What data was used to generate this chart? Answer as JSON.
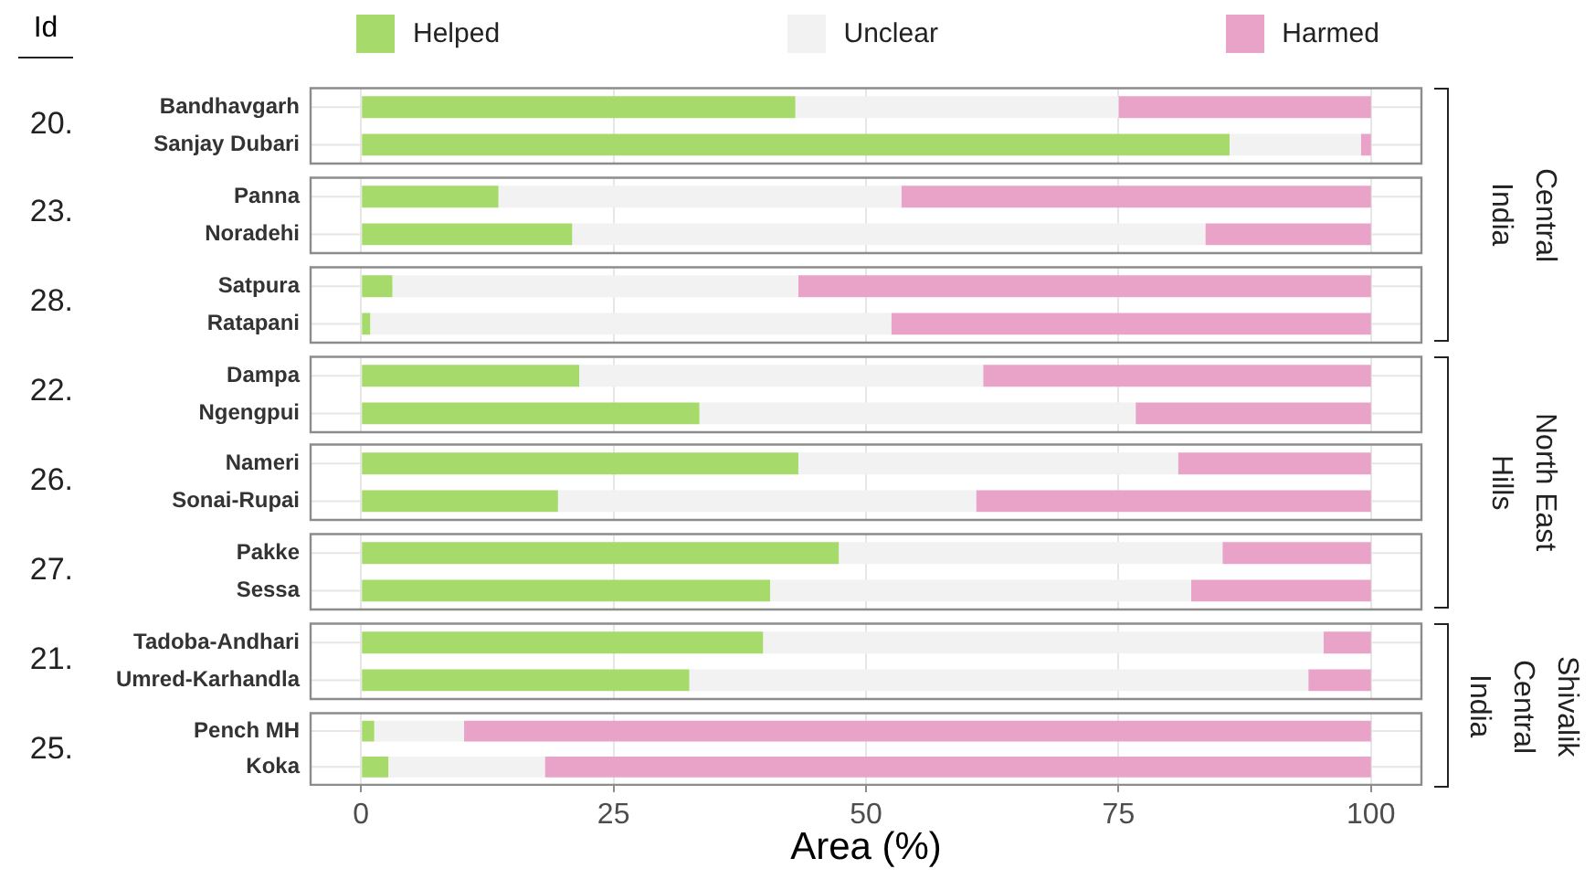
{
  "chart_data": [
    {
      "type": "bar",
      "orientation": "horizontal",
      "stacked": true,
      "title": "20.",
      "y2label": "Central India",
      "annotations": [
        "Id"
      ],
      "categories": [
        "Bandhavgarh",
        "Sanjay Dubari"
      ],
      "series": [
        {
          "name": "Helped",
          "color": "#a6db6b",
          "values": [
            43,
            86
          ]
        },
        {
          "name": "Unclear",
          "color": "#f2f2f2",
          "values": [
            32,
            13
          ]
        },
        {
          "name": "Harmed",
          "color": "#e9a3c9",
          "values": [
            25,
            1
          ]
        }
      ],
      "xlim": [
        -5,
        105
      ],
      "xticks": [
        0,
        25,
        50,
        75,
        100
      ],
      "grid": true,
      "legend": "top",
      "tick_labels": "y"
    },
    {
      "type": "bar",
      "orientation": "horizontal",
      "stacked": true,
      "title": "23.",
      "categories": [
        "Panna",
        "Noradehi"
      ],
      "series": [
        {
          "color": "#a6db6b",
          "values": [
            13.6,
            20.9
          ]
        },
        {
          "color": "#f2f2f2",
          "values": [
            39.9,
            62.7
          ]
        },
        {
          "color": "#e9a3c9",
          "values": [
            46.5,
            16.4
          ]
        }
      ],
      "xlim": [
        -5,
        105
      ],
      "xticks": [
        0,
        25,
        50,
        75,
        100
      ],
      "grid": true,
      "tick_labels": "y"
    },
    {
      "type": "bar",
      "orientation": "horizontal",
      "stacked": true,
      "title": "28.",
      "categories": [
        "Satpura",
        "Ratapani"
      ],
      "series": [
        {
          "color": "#a6db6b",
          "values": [
            3.1,
            0.9
          ]
        },
        {
          "color": "#f2f2f2",
          "values": [
            40.2,
            51.6
          ]
        },
        {
          "color": "#e9a3c9",
          "values": [
            56.7,
            47.5
          ]
        }
      ],
      "xlim": [
        -5,
        105
      ],
      "xticks": [
        0,
        25,
        50,
        75,
        100
      ],
      "grid": true,
      "tick_labels": "y"
    },
    {
      "type": "bar",
      "orientation": "horizontal",
      "stacked": true,
      "title": "22.",
      "y2label": "North East Hills",
      "categories": [
        "Dampa",
        "Ngengpui"
      ],
      "series": [
        {
          "color": "#a6db6b",
          "values": [
            21.6,
            33.5
          ]
        },
        {
          "color": "#f2f2f2",
          "values": [
            40,
            43.2
          ]
        },
        {
          "color": "#e9a3c9",
          "values": [
            38.4,
            23.3
          ]
        }
      ],
      "xlim": [
        -5,
        105
      ],
      "xticks": [
        0,
        25,
        50,
        75,
        100
      ],
      "grid": true,
      "tick_labels": "y"
    },
    {
      "type": "bar",
      "orientation": "horizontal",
      "stacked": true,
      "title": "26.",
      "categories": [
        "Nameri",
        "Sonai-Rupai"
      ],
      "series": [
        {
          "color": "#a6db6b",
          "values": [
            43.3,
            19.5
          ]
        },
        {
          "color": "#f2f2f2",
          "values": [
            37.6,
            41.4
          ]
        },
        {
          "color": "#e9a3c9",
          "values": [
            19.1,
            39.1
          ]
        }
      ],
      "xlim": [
        -5,
        105
      ],
      "xticks": [
        0,
        25,
        50,
        75,
        100
      ],
      "grid": true,
      "tick_labels": "y"
    },
    {
      "type": "bar",
      "orientation": "horizontal",
      "stacked": true,
      "title": "27.",
      "categories": [
        "Pakke",
        "Sessa"
      ],
      "series": [
        {
          "color": "#a6db6b",
          "values": [
            47.3,
            40.5
          ]
        },
        {
          "color": "#f2f2f2",
          "values": [
            38,
            41.7
          ]
        },
        {
          "color": "#e9a3c9",
          "values": [
            14.7,
            17.8
          ]
        }
      ],
      "xlim": [
        -5,
        105
      ],
      "xticks": [
        0,
        25,
        50,
        75,
        100
      ],
      "grid": true,
      "tick_labels": "y"
    },
    {
      "type": "bar",
      "orientation": "horizontal",
      "stacked": true,
      "title": "21.",
      "y2label": "Shivalik Central India",
      "categories": [
        "Tadoba-Andhari",
        "Umred-Karhandla"
      ],
      "series": [
        {
          "color": "#a6db6b",
          "values": [
            39.8,
            32.5
          ]
        },
        {
          "color": "#f2f2f2",
          "values": [
            55.5,
            61.3
          ]
        },
        {
          "color": "#e9a3c9",
          "values": [
            4.7,
            6.2
          ]
        }
      ],
      "xlim": [
        -5,
        105
      ],
      "xticks": [
        0,
        25,
        50,
        75,
        100
      ],
      "grid": true,
      "tick_labels": "y"
    },
    {
      "type": "bar",
      "orientation": "horizontal",
      "stacked": true,
      "title": "25.",
      "xlabel": "Area (%)",
      "categories": [
        "Pench MH",
        "Koka"
      ],
      "series": [
        {
          "color": "#a6db6b",
          "values": [
            1.3,
            2.7
          ]
        },
        {
          "color": "#f2f2f2",
          "values": [
            8.9,
            15.5
          ]
        },
        {
          "color": "#e9a3c9",
          "values": [
            89.8,
            81.8
          ]
        }
      ],
      "xlim": [
        -5,
        105
      ],
      "xticks": [
        0,
        25,
        50,
        75,
        100
      ],
      "grid": true
    }
  ]
}
